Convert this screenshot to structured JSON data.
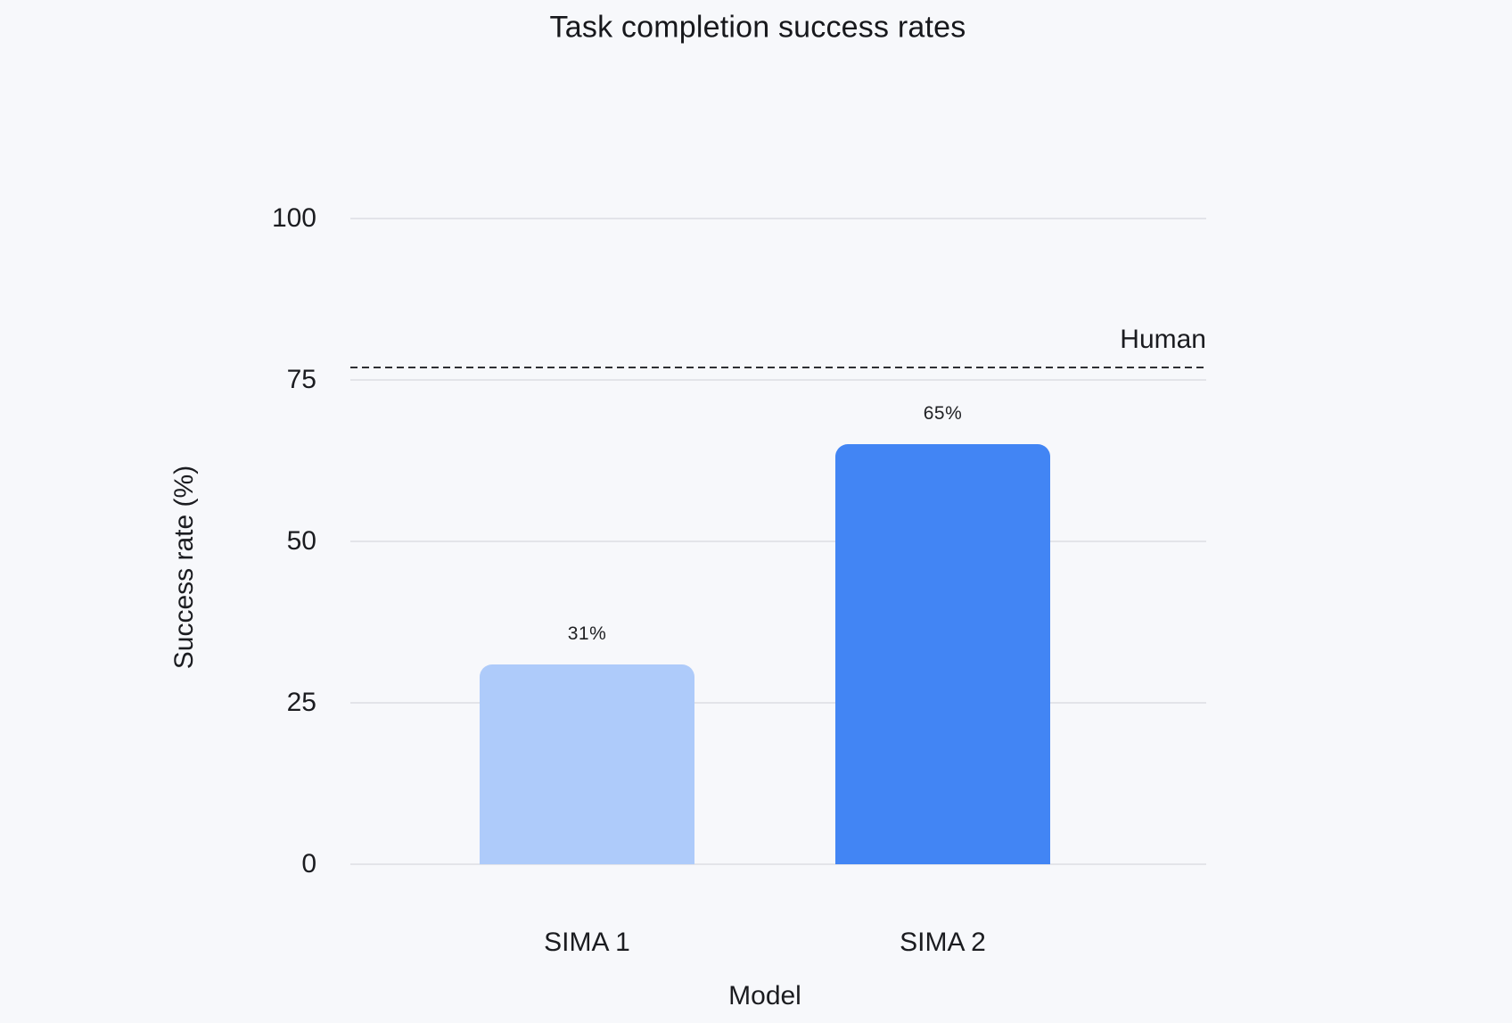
{
  "page": {
    "background": "#f7f8fb"
  },
  "chart_data": {
    "type": "bar",
    "title": "Task completion success rates",
    "xlabel": "Model",
    "ylabel": "Success rate (%)",
    "categories": [
      "SIMA 1",
      "SIMA 2"
    ],
    "values": [
      31,
      65
    ],
    "value_labels": [
      "31%",
      "65%"
    ],
    "bar_colors": [
      "#aecbfa",
      "#4285f4"
    ],
    "ylim": [
      0,
      100
    ],
    "yticks": [
      0,
      25,
      50,
      75,
      100
    ],
    "grid": true,
    "legend_position": "none",
    "reference_line": {
      "label": "Human",
      "value": 77,
      "style": "dashed",
      "color": "#2e2f33"
    },
    "colors": {
      "background": "#f7f8fb",
      "gridline": "#e3e4e9",
      "text": "#1b1c20"
    }
  }
}
